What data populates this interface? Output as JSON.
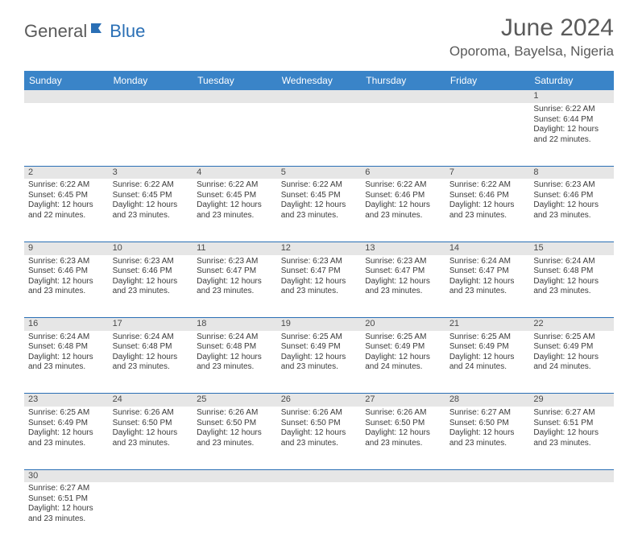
{
  "logo": {
    "part1": "General",
    "part2": "Blue"
  },
  "title": "June 2024",
  "location": "Oporoma, Bayelsa, Nigeria",
  "colors": {
    "header_bg": "#3a84c8",
    "header_text": "#ffffff",
    "daynum_bg": "#e6e6e6",
    "border": "#2a6fb5",
    "text": "#3a3a3a",
    "title_text": "#5a5a5a",
    "logo_accent": "#2a6fb5"
  },
  "weekdays": [
    "Sunday",
    "Monday",
    "Tuesday",
    "Wednesday",
    "Thursday",
    "Friday",
    "Saturday"
  ],
  "weeks": [
    {
      "nums": [
        "",
        "",
        "",
        "",
        "",
        "",
        "1"
      ],
      "cells": [
        null,
        null,
        null,
        null,
        null,
        null,
        {
          "sunrise": "6:22 AM",
          "sunset": "6:44 PM",
          "daylight": "12 hours and 22 minutes."
        }
      ]
    },
    {
      "nums": [
        "2",
        "3",
        "4",
        "5",
        "6",
        "7",
        "8"
      ],
      "cells": [
        {
          "sunrise": "6:22 AM",
          "sunset": "6:45 PM",
          "daylight": "12 hours and 22 minutes."
        },
        {
          "sunrise": "6:22 AM",
          "sunset": "6:45 PM",
          "daylight": "12 hours and 23 minutes."
        },
        {
          "sunrise": "6:22 AM",
          "sunset": "6:45 PM",
          "daylight": "12 hours and 23 minutes."
        },
        {
          "sunrise": "6:22 AM",
          "sunset": "6:45 PM",
          "daylight": "12 hours and 23 minutes."
        },
        {
          "sunrise": "6:22 AM",
          "sunset": "6:46 PM",
          "daylight": "12 hours and 23 minutes."
        },
        {
          "sunrise": "6:22 AM",
          "sunset": "6:46 PM",
          "daylight": "12 hours and 23 minutes."
        },
        {
          "sunrise": "6:23 AM",
          "sunset": "6:46 PM",
          "daylight": "12 hours and 23 minutes."
        }
      ]
    },
    {
      "nums": [
        "9",
        "10",
        "11",
        "12",
        "13",
        "14",
        "15"
      ],
      "cells": [
        {
          "sunrise": "6:23 AM",
          "sunset": "6:46 PM",
          "daylight": "12 hours and 23 minutes."
        },
        {
          "sunrise": "6:23 AM",
          "sunset": "6:46 PM",
          "daylight": "12 hours and 23 minutes."
        },
        {
          "sunrise": "6:23 AM",
          "sunset": "6:47 PM",
          "daylight": "12 hours and 23 minutes."
        },
        {
          "sunrise": "6:23 AM",
          "sunset": "6:47 PM",
          "daylight": "12 hours and 23 minutes."
        },
        {
          "sunrise": "6:23 AM",
          "sunset": "6:47 PM",
          "daylight": "12 hours and 23 minutes."
        },
        {
          "sunrise": "6:24 AM",
          "sunset": "6:47 PM",
          "daylight": "12 hours and 23 minutes."
        },
        {
          "sunrise": "6:24 AM",
          "sunset": "6:48 PM",
          "daylight": "12 hours and 23 minutes."
        }
      ]
    },
    {
      "nums": [
        "16",
        "17",
        "18",
        "19",
        "20",
        "21",
        "22"
      ],
      "cells": [
        {
          "sunrise": "6:24 AM",
          "sunset": "6:48 PM",
          "daylight": "12 hours and 23 minutes."
        },
        {
          "sunrise": "6:24 AM",
          "sunset": "6:48 PM",
          "daylight": "12 hours and 23 minutes."
        },
        {
          "sunrise": "6:24 AM",
          "sunset": "6:48 PM",
          "daylight": "12 hours and 23 minutes."
        },
        {
          "sunrise": "6:25 AM",
          "sunset": "6:49 PM",
          "daylight": "12 hours and 23 minutes."
        },
        {
          "sunrise": "6:25 AM",
          "sunset": "6:49 PM",
          "daylight": "12 hours and 24 minutes."
        },
        {
          "sunrise": "6:25 AM",
          "sunset": "6:49 PM",
          "daylight": "12 hours and 24 minutes."
        },
        {
          "sunrise": "6:25 AM",
          "sunset": "6:49 PM",
          "daylight": "12 hours and 24 minutes."
        }
      ]
    },
    {
      "nums": [
        "23",
        "24",
        "25",
        "26",
        "27",
        "28",
        "29"
      ],
      "cells": [
        {
          "sunrise": "6:25 AM",
          "sunset": "6:49 PM",
          "daylight": "12 hours and 23 minutes."
        },
        {
          "sunrise": "6:26 AM",
          "sunset": "6:50 PM",
          "daylight": "12 hours and 23 minutes."
        },
        {
          "sunrise": "6:26 AM",
          "sunset": "6:50 PM",
          "daylight": "12 hours and 23 minutes."
        },
        {
          "sunrise": "6:26 AM",
          "sunset": "6:50 PM",
          "daylight": "12 hours and 23 minutes."
        },
        {
          "sunrise": "6:26 AM",
          "sunset": "6:50 PM",
          "daylight": "12 hours and 23 minutes."
        },
        {
          "sunrise": "6:27 AM",
          "sunset": "6:50 PM",
          "daylight": "12 hours and 23 minutes."
        },
        {
          "sunrise": "6:27 AM",
          "sunset": "6:51 PM",
          "daylight": "12 hours and 23 minutes."
        }
      ]
    },
    {
      "nums": [
        "30",
        "",
        "",
        "",
        "",
        "",
        ""
      ],
      "cells": [
        {
          "sunrise": "6:27 AM",
          "sunset": "6:51 PM",
          "daylight": "12 hours and 23 minutes."
        },
        null,
        null,
        null,
        null,
        null,
        null
      ]
    }
  ]
}
